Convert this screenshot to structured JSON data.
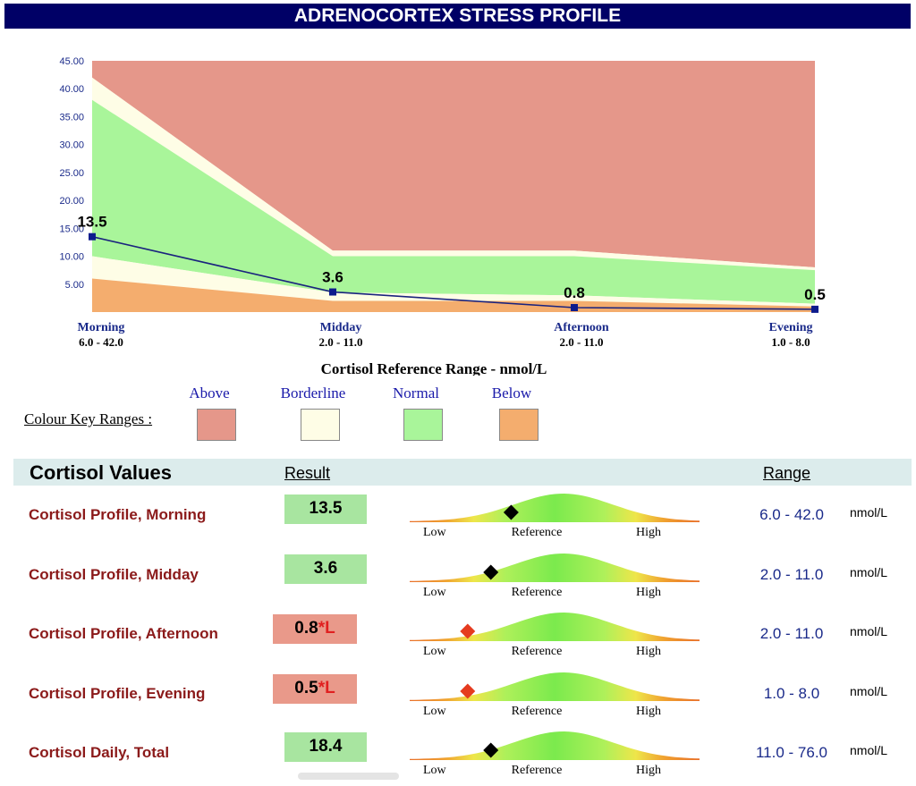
{
  "title": "ADRENOCORTEX STRESS PROFILE",
  "chart_data": {
    "type": "area",
    "categories": [
      "Morning",
      "Midday",
      "Afternoon",
      "Evening"
    ],
    "category_ranges": [
      "6.0 - 42.0",
      "2.0 - 11.0",
      "2.0 - 11.0",
      "1.0 - 8.0"
    ],
    "values": [
      13.5,
      3.6,
      0.8,
      0.5
    ],
    "value_labels": [
      "13.5",
      "3.6",
      "0.8",
      "0.5"
    ],
    "bands": {
      "below_top": [
        6.0,
        2.0,
        2.0,
        1.0
      ],
      "borderline_low_top": [
        10.0,
        3.5,
        3.0,
        1.5
      ],
      "normal_top": [
        38.0,
        10.0,
        10.0,
        7.5
      ],
      "borderline_high_top": [
        42.0,
        11.0,
        11.0,
        8.0
      ],
      "above_top": [
        45.0,
        45.0,
        45.0,
        45.0
      ]
    },
    "ylim": [
      0,
      45
    ],
    "yticks": [
      "5.00",
      "10.00",
      "15.00",
      "20.00",
      "25.00",
      "30.00",
      "35.00",
      "40.00",
      "45.00"
    ],
    "ytick_values": [
      5,
      10,
      15,
      20,
      25,
      30,
      35,
      40,
      45
    ],
    "xlabel": "Cortisol Reference Range - nmol/L",
    "line_color": "#1a237e"
  },
  "colour_key": {
    "title": "Colour Key Ranges :",
    "items": [
      {
        "label": "Above",
        "color": "#e5978a"
      },
      {
        "label": "Borderline",
        "color": "#fefde6"
      },
      {
        "label": "Normal",
        "color": "#a9f59a"
      },
      {
        "label": "Below",
        "color": "#f4ad6e"
      }
    ]
  },
  "values_table": {
    "title": "Cortisol Values",
    "result_header": "Result",
    "range_header": "Range",
    "gauge_labels": {
      "low": "Low",
      "ref": "Reference",
      "high": "High"
    },
    "rows": [
      {
        "name": "Cortisol Profile, Morning",
        "result": "13.5",
        "flag": "",
        "status": "normal",
        "range": "6.0 - 42.0",
        "unit": "nmol/L",
        "marker_position": 0.35,
        "marker_color": "#000000"
      },
      {
        "name": "Cortisol Profile, Midday",
        "result": "3.6",
        "flag": "",
        "status": "normal",
        "range": "2.0 - 11.0",
        "unit": "nmol/L",
        "marker_position": 0.28,
        "marker_color": "#000000"
      },
      {
        "name": "Cortisol Profile, Afternoon",
        "result": "0.8",
        "flag": "*L",
        "status": "low",
        "range": "2.0 - 11.0",
        "unit": "nmol/L",
        "marker_position": 0.2,
        "marker_color": "#e53b1f"
      },
      {
        "name": "Cortisol Profile, Evening",
        "result": "0.5",
        "flag": "*L",
        "status": "low",
        "range": "1.0 - 8.0",
        "unit": "nmol/L",
        "marker_position": 0.2,
        "marker_color": "#e53b1f"
      },
      {
        "name": "Cortisol Daily, Total",
        "result": "18.4",
        "flag": "",
        "status": "normal",
        "range": "11.0 - 76.0",
        "unit": "nmol/L",
        "marker_position": 0.28,
        "marker_color": "#000000"
      }
    ]
  }
}
